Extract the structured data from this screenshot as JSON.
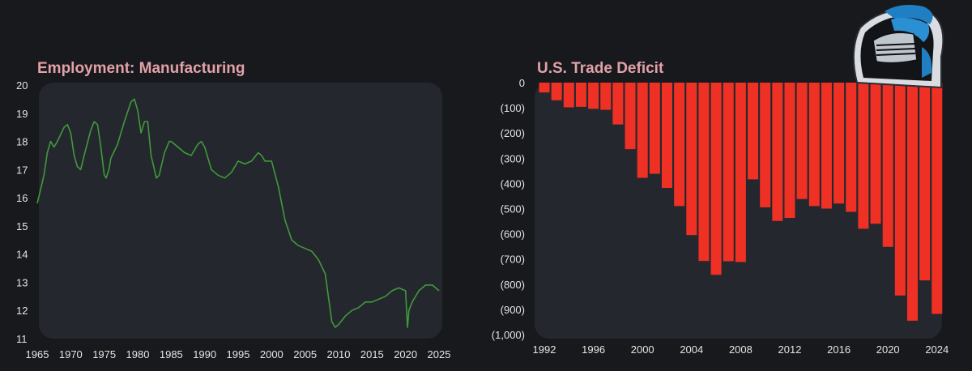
{
  "colors": {
    "background": "#18191d",
    "panel": "#25272e",
    "title": "#e2a1a8",
    "line": "#3f9a3b",
    "bar": "#ee3124",
    "tick_text": "#e4e4e4"
  },
  "logo": {
    "icon": "knight-helmet-logo-icon"
  },
  "chart_data": [
    {
      "type": "line",
      "title": "Employment: Manufacturing",
      "xlabel": "",
      "ylabel": "",
      "xlim": [
        1965,
        2025
      ],
      "ylim": [
        11,
        20
      ],
      "grid": false,
      "x_ticks": [
        "1965",
        "1970",
        "1975",
        "1980",
        "1985",
        "1990",
        "1995",
        "2000",
        "2005",
        "2010",
        "2015",
        "2020",
        "2025"
      ],
      "y_ticks": [
        "20",
        "19",
        "18",
        "17",
        "16",
        "15",
        "14",
        "13",
        "12",
        "11"
      ],
      "series": [
        {
          "x": [
            1965,
            1966,
            1966.5,
            1967,
            1967.5,
            1968,
            1969,
            1969.5,
            1970,
            1970.5,
            1971,
            1971.5,
            1972,
            1973,
            1973.5,
            1974,
            1974.5,
            1975,
            1975.3,
            1975.7,
            1976,
            1977,
            1978,
            1979,
            1979.5,
            1980,
            1980.5,
            1981,
            1981.5,
            1982,
            1982.8,
            1983.2,
            1984,
            1984.7,
            1985,
            1986,
            1987,
            1988,
            1989,
            1989.5,
            1990,
            1991,
            1992,
            1993,
            1994,
            1995,
            1996,
            1997,
            1998,
            1998.5,
            1999,
            2000,
            2001,
            2002,
            2003,
            2004,
            2005,
            2006,
            2007,
            2008,
            2009,
            2009.5,
            2010,
            2011,
            2012,
            2013,
            2014,
            2015,
            2016,
            2017,
            2018,
            2019,
            2020,
            2020.3,
            2020.5,
            2021,
            2022,
            2023,
            2024,
            2024.5,
            2025
          ],
          "values": [
            15.8,
            16.8,
            17.6,
            18.0,
            17.8,
            18.0,
            18.5,
            18.6,
            18.3,
            17.5,
            17.1,
            17.0,
            17.5,
            18.4,
            18.7,
            18.6,
            17.8,
            16.8,
            16.7,
            17.0,
            17.4,
            17.9,
            18.7,
            19.4,
            19.5,
            19.1,
            18.3,
            18.7,
            18.7,
            17.5,
            16.7,
            16.8,
            17.6,
            18.0,
            18.0,
            17.8,
            17.6,
            17.5,
            17.9,
            18.0,
            17.8,
            17.0,
            16.8,
            16.7,
            16.9,
            17.3,
            17.2,
            17.3,
            17.6,
            17.5,
            17.3,
            17.3,
            16.4,
            15.2,
            14.5,
            14.3,
            14.2,
            14.1,
            13.8,
            13.3,
            11.6,
            11.4,
            11.5,
            11.8,
            12.0,
            12.1,
            12.3,
            12.3,
            12.4,
            12.5,
            12.7,
            12.8,
            12.7,
            11.4,
            12.0,
            12.3,
            12.7,
            12.9,
            12.9,
            12.8,
            12.7
          ]
        }
      ]
    },
    {
      "type": "bar",
      "title": "U.S. Trade Deficit",
      "xlabel": "",
      "ylabel": "",
      "ylim": [
        -1000,
        0
      ],
      "grid": false,
      "x_ticks": [
        "1992",
        "1996",
        "2000",
        "2004",
        "2008",
        "2012",
        "2016",
        "2020",
        "2024"
      ],
      "y_ticks": [
        "0",
        "(100)",
        "(200)",
        "(300)",
        "(400)",
        "(500)",
        "(600)",
        "(700)",
        "(800)",
        "(900)",
        "(1,000)"
      ],
      "categories": [
        1992,
        1993,
        1994,
        1995,
        1996,
        1997,
        1998,
        1999,
        2000,
        2001,
        2002,
        2003,
        2004,
        2005,
        2006,
        2007,
        2008,
        2009,
        2010,
        2011,
        2012,
        2013,
        2014,
        2015,
        2016,
        2017,
        2018,
        2019,
        2020,
        2021,
        2022,
        2023,
        2024
      ],
      "values": [
        -39,
        -70,
        -98,
        -96,
        -104,
        -108,
        -166,
        -264,
        -378,
        -362,
        -418,
        -490,
        -605,
        -708,
        -763,
        -709,
        -712,
        -384,
        -495,
        -549,
        -537,
        -462,
        -490,
        -500,
        -480,
        -513,
        -580,
        -560,
        -652,
        -845,
        -945,
        -785,
        -918
      ]
    }
  ]
}
